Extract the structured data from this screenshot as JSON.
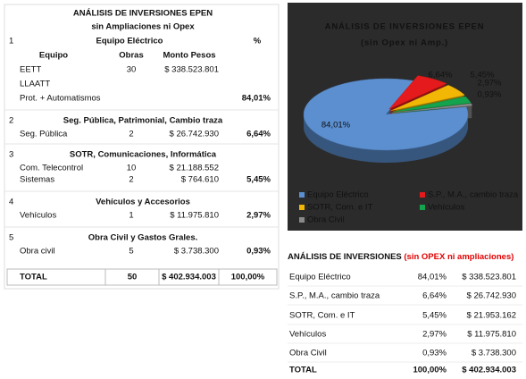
{
  "left_table": {
    "title": "ANÁLISIS DE INVERSIONES EPEN",
    "subtitle": "sin Ampliaciones ni Opex",
    "percent_header": "%",
    "column_headers": [
      "Equipo",
      "Obras",
      "Monto Pesos"
    ],
    "sections": [
      {
        "number": "1",
        "heading": "Equipo Eléctrico",
        "rows": [
          {
            "equipo": "EETT",
            "obras": "30",
            "monto": "$ 338.523.801"
          },
          {
            "equipo": "LLAATT"
          },
          {
            "equipo": "Prot. + Automatismos",
            "percent": "84,01%"
          }
        ]
      },
      {
        "number": "2",
        "heading": "Seg. Pública, Patrimonial, Cambio traza",
        "rows": [
          {
            "equipo": "Seg. Pública",
            "obras": "2",
            "monto": "$ 26.742.930",
            "percent": "6,64%"
          }
        ]
      },
      {
        "number": "3",
        "heading": "SOTR, Comunicaciones, Informática",
        "rows": [
          {
            "equipo": "Com. Telecontrol",
            "obras": "10",
            "monto": "$ 21.188.552"
          },
          {
            "equipo": "Sistemas",
            "obras": "2",
            "monto": "$ 764.610",
            "percent": "5,45%"
          }
        ]
      },
      {
        "number": "4",
        "heading": "Vehículos y Accesorios",
        "rows": [
          {
            "equipo": "Vehículos",
            "obras": "1",
            "monto": "$ 11.975.810",
            "percent": "2,97%"
          }
        ]
      },
      {
        "number": "5",
        "heading": "Obra Civil y Gastos Grales.",
        "rows": [
          {
            "equipo": "Obra civil",
            "obras": "5",
            "monto": "$ 3.738.300",
            "percent": "0,93%"
          }
        ]
      }
    ],
    "total": [
      "TOTAL",
      "50",
      "$ 402.934.003",
      "100,00%"
    ]
  },
  "chart_data": {
    "type": "pie",
    "title": "ANÁLISIS DE INVERSIONES  EPEN",
    "subtitle": "(sin Opex ni Amp.)",
    "categories": [
      "Equipo Eléctrico",
      "S.P., M.A., cambio traza",
      "SOTR, Com. e IT",
      "Vehículos",
      "Obra Civil"
    ],
    "values": [
      84.01,
      6.64,
      5.45,
      2.97,
      0.93
    ],
    "value_labels": [
      "84,01%",
      "6,64%",
      "5,45%",
      "2,97%",
      "0,93%"
    ],
    "colors": [
      "#5b8fd0",
      "#e41a1c",
      "#f2b705",
      "#14a44d",
      "#8a8a8a"
    ]
  },
  "right_table": {
    "title": "ANÁLISIS DE INVERSIONES",
    "title_note": "(sin OPEX ni ampliaciones)",
    "rows": [
      [
        "Equipo Eléctrico",
        "84,01%",
        "$ 338.523.801"
      ],
      [
        "S.P., M.A., cambio traza",
        "6,64%",
        "$ 26.742.930"
      ],
      [
        "SOTR, Com. e IT",
        "5,45%",
        "$ 21.953.162"
      ],
      [
        "Vehículos",
        "2,97%",
        "$ 11.975.810"
      ],
      [
        "Obra Civil",
        "0,93%",
        "$ 3.738.300"
      ]
    ],
    "total": [
      "TOTAL",
      "100,00%",
      "$ 402.934.003"
    ]
  }
}
